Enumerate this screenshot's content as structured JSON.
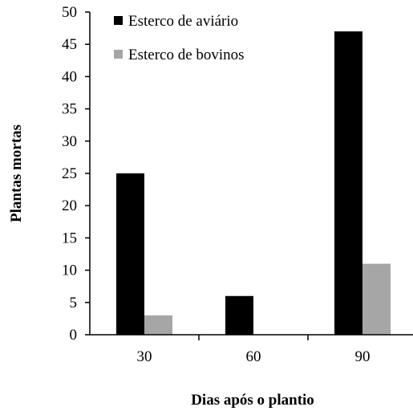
{
  "chart_data": {
    "type": "bar",
    "title": "",
    "xlabel": "Dias após o plantio",
    "ylabel": "Plantas mortas",
    "categories": [
      "30",
      "60",
      "90"
    ],
    "series": [
      {
        "name": "Esterco de aviário",
        "values": [
          25,
          6,
          47
        ],
        "color": "#000000"
      },
      {
        "name": "Esterco de bovinos",
        "values": [
          3,
          0,
          11
        ],
        "color": "#a6a6a6"
      }
    ],
    "ylim": [
      0,
      50
    ],
    "yticks": [
      "0",
      "5",
      "10",
      "15",
      "20",
      "25",
      "30",
      "35",
      "40",
      "45",
      "50"
    ],
    "grid": false,
    "legend_position": "top-left"
  }
}
